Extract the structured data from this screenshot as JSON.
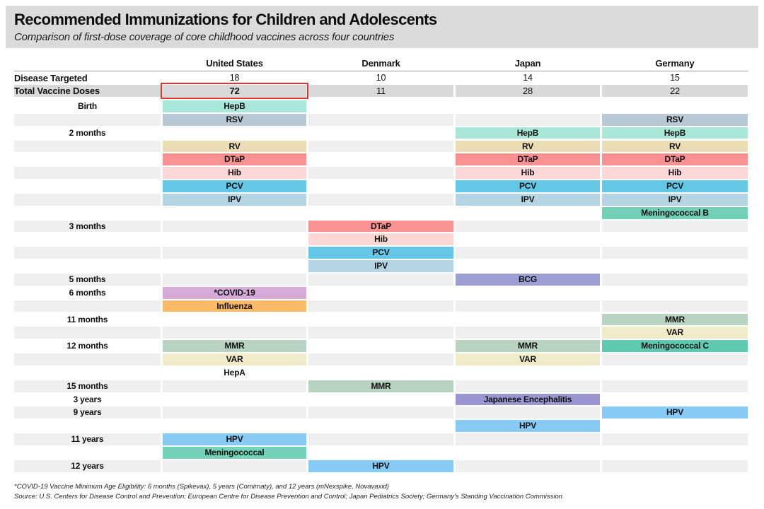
{
  "chart_data": {
    "type": "table",
    "title": "Recommended Immunizations for Children and Adolescents",
    "subtitle": "Comparison of first-dose coverage of core childhood vaccines across four countries",
    "columns": [
      "United States",
      "Denmark",
      "Japan",
      "Germany"
    ],
    "summary_rows": [
      {
        "label": "Disease Targeted",
        "values": [
          "18",
          "10",
          "14",
          "15"
        ]
      },
      {
        "label": "Total Vaccine Doses",
        "values": [
          "72",
          "11",
          "28",
          "22"
        ],
        "highlight_col": 0
      }
    ],
    "age_rows": [
      {
        "age": "Birth",
        "shade": false,
        "cells": [
          "HepB",
          "",
          "",
          ""
        ]
      },
      {
        "age": "",
        "shade": true,
        "cells": [
          "RSV",
          "",
          "",
          "RSV"
        ]
      },
      {
        "age": "2 months",
        "shade": false,
        "cells": [
          "",
          "",
          "HepB",
          "HepB"
        ]
      },
      {
        "age": "",
        "shade": true,
        "cells": [
          "RV",
          "",
          "RV",
          "RV"
        ]
      },
      {
        "age": "",
        "shade": false,
        "cells": [
          "DTaP",
          "",
          "DTaP",
          "DTaP"
        ]
      },
      {
        "age": "",
        "shade": true,
        "cells": [
          "Hib",
          "",
          "Hib",
          "Hib"
        ]
      },
      {
        "age": "",
        "shade": false,
        "cells": [
          "PCV",
          "",
          "PCV",
          "PCV"
        ]
      },
      {
        "age": "",
        "shade": true,
        "cells": [
          "IPV",
          "",
          "IPV",
          "IPV"
        ]
      },
      {
        "age": "",
        "shade": false,
        "cells": [
          "",
          "",
          "",
          "Meningococcal B"
        ]
      },
      {
        "age": "3 months",
        "shade": true,
        "cells": [
          "",
          "DTaP",
          "",
          ""
        ]
      },
      {
        "age": "",
        "shade": false,
        "cells": [
          "",
          "Hib",
          "",
          ""
        ]
      },
      {
        "age": "",
        "shade": true,
        "cells": [
          "",
          "PCV",
          "",
          ""
        ]
      },
      {
        "age": "",
        "shade": false,
        "cells": [
          "",
          "IPV",
          "",
          ""
        ]
      },
      {
        "age": "5 months",
        "shade": true,
        "cells": [
          "",
          "",
          "BCG",
          ""
        ]
      },
      {
        "age": "6 months",
        "shade": false,
        "cells": [
          "*COVID-19",
          "",
          "",
          ""
        ]
      },
      {
        "age": "",
        "shade": true,
        "cells": [
          "Influenza",
          "",
          "",
          ""
        ]
      },
      {
        "age": "11 months",
        "shade": false,
        "cells": [
          "",
          "",
          "",
          "MMR"
        ]
      },
      {
        "age": "",
        "shade": true,
        "cells": [
          "",
          "",
          "",
          "VAR"
        ]
      },
      {
        "age": "12 months",
        "shade": false,
        "cells": [
          "MMR",
          "",
          "MMR",
          "Meningococcal C"
        ]
      },
      {
        "age": "",
        "shade": true,
        "cells": [
          "VAR",
          "",
          "VAR",
          ""
        ]
      },
      {
        "age": "",
        "shade": false,
        "cells": [
          "HepA",
          "",
          "",
          ""
        ]
      },
      {
        "age": "15 months",
        "shade": true,
        "cells": [
          "",
          "MMR",
          "",
          ""
        ]
      },
      {
        "age": "3 years",
        "shade": false,
        "cells": [
          "",
          "",
          "Japanese Encephalitis",
          ""
        ]
      },
      {
        "age": "9 years",
        "shade": true,
        "cells": [
          "",
          "",
          "",
          "HPV"
        ]
      },
      {
        "age": "",
        "shade": false,
        "cells": [
          "",
          "",
          "HPV",
          ""
        ]
      },
      {
        "age": "11 years",
        "shade": true,
        "cells": [
          "HPV",
          "",
          "",
          ""
        ]
      },
      {
        "age": "",
        "shade": false,
        "cells": [
          "Meningococcal",
          "",
          "",
          ""
        ]
      },
      {
        "age": "12 years",
        "shade": true,
        "cells": [
          "",
          "HPV",
          "",
          ""
        ]
      }
    ]
  },
  "colors": {
    "title_band": "#dbdbdb",
    "row_shade": "#efefef",
    "summary_shade": "#d9d9d9",
    "highlight_red": "#e5332a",
    "vaccines": {
      "HepB": "#a9e8d8",
      "RSV": "#b8c9d5",
      "RV": "#eadcb5",
      "DTaP": "#f89292",
      "Hib": "#fbd8d5",
      "PCV": "#63c7e5",
      "IPV": "#b5d4e3",
      "Meningococcal B": "#70cfb5",
      "BCG": "#9c9ed4",
      "*COVID-19": "#d7abd8",
      "Influenza": "#fbba67",
      "MMR": "#b8d3c2",
      "VAR": "#f0ecca",
      "Meningococcal C": "#5fcab0",
      "Japanese Encephalitis": "#9b95d2",
      "HPV": "#87cbf4",
      "Meningococcal": "#74d2b8",
      "HepA": null
    }
  },
  "footnotes": [
    "*COVID-19 Vaccine Minimum Age Eligibility: 6 months (Spikevax), 5 years (Comirnaty), and 12 years (mNexspike, Novavaxid)",
    "Source: U.S. Centers for Disease Control and Prevention; European Centre for Disease Prevention and Control; Japan Pediatrics Society; Germany's Standing Vaccination Commission"
  ]
}
